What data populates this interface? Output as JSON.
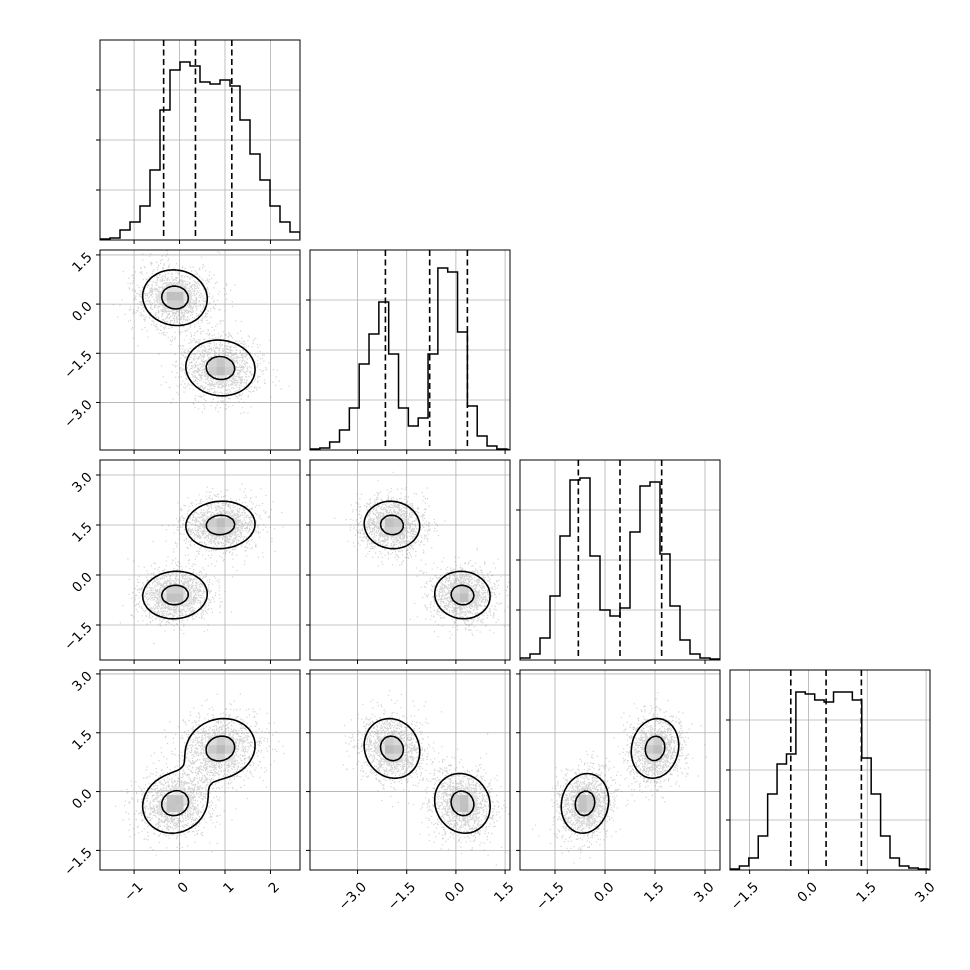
{
  "chart_data": {
    "type": "corner",
    "title": "",
    "n_params": 4,
    "labels": [
      "",
      "",
      "",
      ""
    ],
    "ranges": [
      [
        -1.75,
        2.65
      ],
      [
        -4.45,
        1.65
      ],
      [
        -2.55,
        3.45
      ],
      [
        -2.0,
        3.1
      ]
    ],
    "ticks": [
      [
        "−1",
        "0",
        "1",
        "2"
      ],
      [
        "−3.0",
        "−1.5",
        "0.0",
        "1.5"
      ],
      [
        "−1.5",
        "0.0",
        "1.5",
        "3.0"
      ],
      [
        "−1.5",
        "0.0",
        "1.5",
        "3.0"
      ]
    ],
    "tick_values": [
      [
        -1,
        0,
        1,
        2
      ],
      [
        -3.0,
        -1.5,
        0.0,
        1.5
      ],
      [
        -1.5,
        0.0,
        1.5,
        3.0
      ],
      [
        -1.5,
        0.0,
        1.5,
        3.0
      ]
    ],
    "quantiles": [
      [
        -0.35,
        0.35,
        1.15
      ],
      [
        -2.15,
        -0.8,
        0.35
      ],
      [
        -0.8,
        0.45,
        1.7
      ],
      [
        -0.45,
        0.45,
        1.35
      ]
    ],
    "histograms": [
      {
        "bin_edges_start": -1.75,
        "bin_width": 0.22,
        "heights": [
          0.005,
          0.01,
          0.05,
          0.09,
          0.17,
          0.35,
          0.65,
          0.85,
          0.89,
          0.87,
          0.79,
          0.78,
          0.8,
          0.77,
          0.6,
          0.43,
          0.3,
          0.17,
          0.09,
          0.04,
          0.01,
          0.005
        ]
      },
      {
        "bin_edges_start": -4.45,
        "bin_width": 0.3,
        "heights": [
          0.005,
          0.01,
          0.04,
          0.1,
          0.21,
          0.43,
          0.58,
          0.74,
          0.48,
          0.21,
          0.12,
          0.16,
          0.48,
          0.91,
          0.89,
          0.59,
          0.22,
          0.07,
          0.02,
          0.005
        ]
      },
      {
        "bin_edges_start": -2.55,
        "bin_width": 0.3,
        "heights": [
          0.01,
          0.03,
          0.11,
          0.32,
          0.62,
          0.9,
          0.91,
          0.52,
          0.25,
          0.22,
          0.26,
          0.64,
          0.87,
          0.89,
          0.53,
          0.27,
          0.1,
          0.03,
          0.01,
          0.005
        ]
      },
      {
        "bin_edges_start": -2.0,
        "bin_width": 0.24,
        "heights": [
          0.005,
          0.02,
          0.06,
          0.17,
          0.38,
          0.53,
          0.58,
          0.89,
          0.88,
          0.85,
          0.84,
          0.89,
          0.89,
          0.85,
          0.56,
          0.38,
          0.17,
          0.06,
          0.02,
          0.01,
          0.005
        ]
      }
    ],
    "hist_ylim_pixels_note": "",
    "modes": [
      {
        "weight": 0.5,
        "mean": [
          -0.1,
          0.2,
          -0.6,
          -0.3
        ],
        "sd": [
          0.42,
          0.5,
          0.42,
          0.45
        ]
      },
      {
        "weight": 0.5,
        "mean": [
          0.9,
          -1.95,
          1.5,
          1.1
        ],
        "sd": [
          0.45,
          0.5,
          0.42,
          0.45
        ]
      }
    ],
    "pair_correlations": {
      "1-0": -0.05,
      "2-0": 0.05,
      "2-1": -0.05,
      "3-0": 0.1,
      "3-1": -0.1,
      "3-2": 0.1
    },
    "contour_levels": [
      0.12,
      0.39,
      0.68,
      0.86
    ],
    "grid": true
  }
}
